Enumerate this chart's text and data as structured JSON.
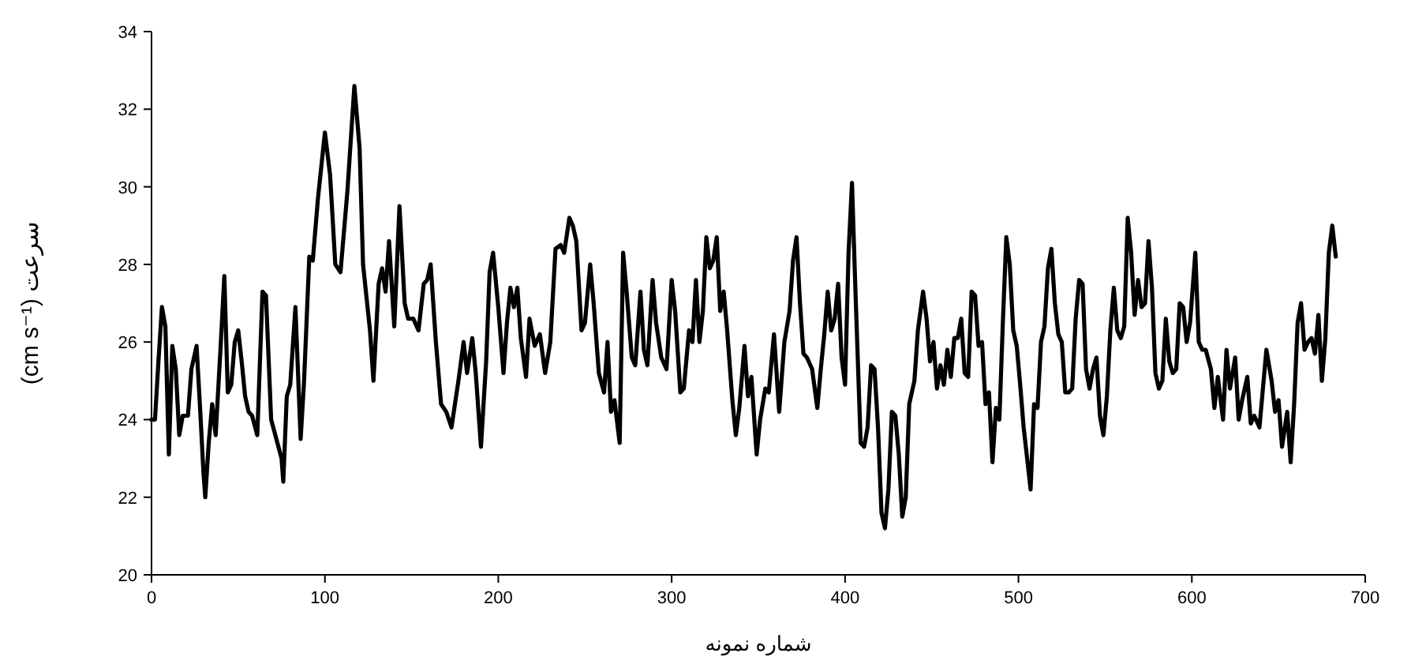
{
  "chart_data": {
    "type": "line",
    "xlabel": "شماره نمونه",
    "ylabel": "سرعت (cm s⁻¹)",
    "xlim": [
      0,
      700
    ],
    "xticks": [
      0,
      100,
      200,
      300,
      400,
      500,
      600,
      700
    ],
    "ylim": [
      20,
      34
    ],
    "yticks": [
      20,
      22,
      24,
      26,
      28,
      30,
      32,
      34
    ],
    "grid": false,
    "marker": "none",
    "line_style": "solid",
    "series": [
      {
        "color": "#000000",
        "x": [
          0,
          2,
          4,
          6,
          8,
          10,
          12,
          14,
          16,
          18,
          21,
          23,
          26,
          28,
          30,
          31,
          33,
          35,
          37,
          40,
          42,
          44,
          46,
          48,
          50,
          52,
          54,
          56,
          58,
          61,
          64,
          66,
          69,
          72,
          75,
          76,
          78,
          80,
          83,
          86,
          88,
          91,
          93,
          96,
          100,
          103,
          106,
          109,
          113,
          117,
          120,
          122,
          126,
          128,
          131,
          133,
          135,
          137,
          140,
          143,
          146,
          148,
          151,
          154,
          157,
          159,
          161,
          164,
          167,
          170,
          173,
          177,
          180,
          182,
          185,
          187,
          190,
          193,
          195,
          197,
          200,
          203,
          205,
          207,
          209,
          211,
          213,
          216,
          218,
          221,
          224,
          227,
          230,
          233,
          236,
          238,
          241,
          243,
          245,
          248,
          250,
          253,
          255,
          258,
          261,
          263,
          265,
          267,
          270,
          272,
          274,
          277,
          279,
          282,
          284,
          286,
          289,
          291,
          294,
          297,
          300,
          302,
          305,
          307,
          310,
          312,
          314,
          316,
          318,
          320,
          322,
          324,
          326,
          328,
          330,
          332,
          335,
          337,
          339,
          342,
          344,
          346,
          349,
          351,
          354,
          356,
          359,
          362,
          365,
          368,
          370,
          372,
          374,
          376,
          378,
          381,
          384,
          386,
          388,
          390,
          392,
          394,
          396,
          398,
          400,
          402,
          404,
          406,
          409,
          411,
          413,
          415,
          417,
          419,
          421,
          423,
          425,
          427,
          429,
          431,
          433,
          435,
          437,
          440,
          442,
          445,
          447,
          449,
          451,
          453,
          455,
          457,
          459,
          461,
          463,
          465,
          467,
          469,
          471,
          473,
          475,
          477,
          479,
          481,
          483,
          485,
          487,
          489,
          491,
          493,
          495,
          497,
          499,
          501,
          503,
          505,
          507,
          509,
          511,
          513,
          515,
          517,
          519,
          521,
          523,
          525,
          527,
          529,
          531,
          533,
          535,
          537,
          539,
          541,
          543,
          545,
          547,
          549,
          551,
          553,
          555,
          557,
          559,
          561,
          563,
          565,
          567,
          569,
          571,
          573,
          575,
          577,
          579,
          581,
          583,
          585,
          587,
          589,
          591,
          593,
          595,
          597,
          599,
          602,
          604,
          606,
          608,
          611,
          613,
          615,
          618,
          620,
          622,
          625,
          627,
          629,
          632,
          634,
          636,
          639,
          641,
          643,
          646,
          648,
          650,
          652,
          655,
          657,
          659,
          661,
          663,
          665,
          667,
          669,
          671,
          673,
          675,
          677,
          679,
          681,
          683
        ],
        "values": [
          24.0,
          24.0,
          25.5,
          26.9,
          26.4,
          23.1,
          25.9,
          25.3,
          23.6,
          24.1,
          24.1,
          25.3,
          25.9,
          24.3,
          22.6,
          22.0,
          23.4,
          24.4,
          23.6,
          26.0,
          27.7,
          24.7,
          24.9,
          26.0,
          26.3,
          25.5,
          24.6,
          24.2,
          24.1,
          23.6,
          27.3,
          27.2,
          24.0,
          23.5,
          23.0,
          22.4,
          24.6,
          24.9,
          26.9,
          23.5,
          25.0,
          28.2,
          28.1,
          29.7,
          31.4,
          30.3,
          28.0,
          27.8,
          29.9,
          32.6,
          31.0,
          28.0,
          26.3,
          25.0,
          27.5,
          27.9,
          27.3,
          28.6,
          26.4,
          29.5,
          27.0,
          26.6,
          26.6,
          26.3,
          27.5,
          27.6,
          28.0,
          26.0,
          24.4,
          24.2,
          23.8,
          25.0,
          26.0,
          25.2,
          26.1,
          25.2,
          23.3,
          25.5,
          27.8,
          28.3,
          26.9,
          25.2,
          26.5,
          27.4,
          26.9,
          27.4,
          26.1,
          25.1,
          26.6,
          25.9,
          26.2,
          25.2,
          26.0,
          28.4,
          28.5,
          28.3,
          29.2,
          29.0,
          28.6,
          26.3,
          26.5,
          28.0,
          27.0,
          25.2,
          24.7,
          26.0,
          24.2,
          24.5,
          23.4,
          28.3,
          27.3,
          25.6,
          25.4,
          27.3,
          25.8,
          25.4,
          27.6,
          26.5,
          25.6,
          25.3,
          27.6,
          26.8,
          24.7,
          24.8,
          26.3,
          26.0,
          27.6,
          26.0,
          26.8,
          28.7,
          27.9,
          28.1,
          28.7,
          26.8,
          27.3,
          26.3,
          24.5,
          23.6,
          24.3,
          25.9,
          24.6,
          25.1,
          23.1,
          24.0,
          24.8,
          24.7,
          26.2,
          24.2,
          26.0,
          26.8,
          28.1,
          28.7,
          27.0,
          25.7,
          25.6,
          25.3,
          24.3,
          25.3,
          26.2,
          27.3,
          26.3,
          26.6,
          27.5,
          25.6,
          24.9,
          28.3,
          30.1,
          27.3,
          23.4,
          23.3,
          23.8,
          25.4,
          25.3,
          23.8,
          21.6,
          21.2,
          22.2,
          24.2,
          24.1,
          23.1,
          21.5,
          22.0,
          24.4,
          25.0,
          26.3,
          27.3,
          26.6,
          25.5,
          26.0,
          24.8,
          25.4,
          24.9,
          25.8,
          25.1,
          26.1,
          26.1,
          26.6,
          25.2,
          25.1,
          27.3,
          27.2,
          25.9,
          26.0,
          24.4,
          24.7,
          22.9,
          24.3,
          24.0,
          26.5,
          28.7,
          28.0,
          26.3,
          25.9,
          24.9,
          23.8,
          23.0,
          22.2,
          24.4,
          24.3,
          26.0,
          26.4,
          27.9,
          28.4,
          27.0,
          26.2,
          26.0,
          24.7,
          24.7,
          24.8,
          26.6,
          27.6,
          27.5,
          25.3,
          24.8,
          25.3,
          25.6,
          24.1,
          23.6,
          24.6,
          26.3,
          27.4,
          26.3,
          26.1,
          26.4,
          29.2,
          28.3,
          26.7,
          27.6,
          26.9,
          27.0,
          28.6,
          27.4,
          25.2,
          24.8,
          25.0,
          26.6,
          25.5,
          25.2,
          25.3,
          27.0,
          26.9,
          26.0,
          26.5,
          28.3,
          26.0,
          25.8,
          25.8,
          25.3,
          24.3,
          25.1,
          24.0,
          25.8,
          24.8,
          25.6,
          24.0,
          24.5,
          25.1,
          23.9,
          24.1,
          23.8,
          24.8,
          25.8,
          25.0,
          24.2,
          24.5,
          23.3,
          24.2,
          22.9,
          24.4,
          26.5,
          27.0,
          25.8,
          26.0,
          26.1,
          25.7,
          26.7,
          25.0,
          26.1,
          28.3,
          29.0,
          28.2
        ]
      }
    ]
  }
}
